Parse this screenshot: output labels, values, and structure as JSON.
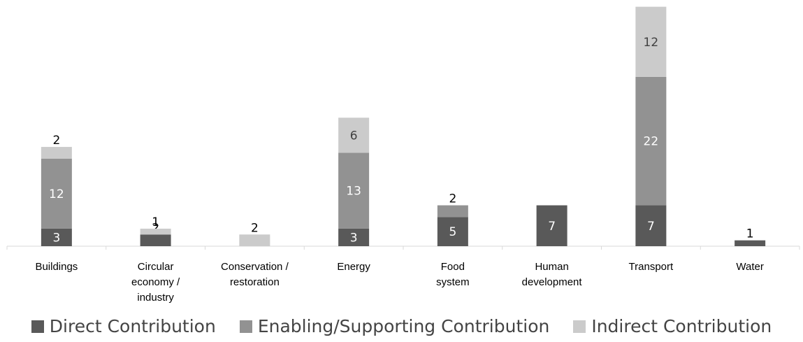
{
  "chart_data": {
    "type": "bar",
    "stacked": true,
    "title": "",
    "xlabel": "",
    "ylabel": "",
    "ylim": [
      0,
      41
    ],
    "grid": false,
    "legend_position": "bottom",
    "categories": [
      [
        "Buildings"
      ],
      [
        "Circular",
        "economy /",
        "industry"
      ],
      [
        "Conservation /",
        "restoration"
      ],
      [
        "Energy"
      ],
      [
        "Food",
        "system"
      ],
      [
        "Human",
        "development"
      ],
      [
        "Transport"
      ],
      [
        "Water"
      ]
    ],
    "series": [
      {
        "name": "Direct Contribution",
        "color": "#595959",
        "label_color": "#ffffff",
        "values": [
          3,
          2,
          0,
          3,
          5,
          7,
          7,
          1
        ]
      },
      {
        "name": "Enabling/Supporting Contribution",
        "color": "#929292",
        "label_color": "#ffffff",
        "values": [
          12,
          0,
          0,
          13,
          2,
          0,
          22,
          0
        ]
      },
      {
        "name": "Indirect Contribution",
        "color": "#cbcbcb",
        "label_color": "#404040",
        "values": [
          2,
          1,
          2,
          6,
          0,
          0,
          12,
          0
        ]
      }
    ]
  }
}
